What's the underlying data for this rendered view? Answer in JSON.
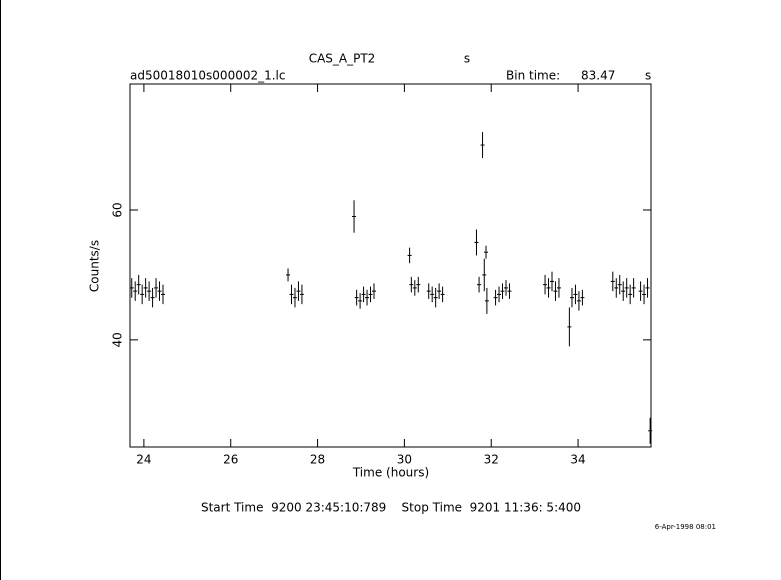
{
  "chart_data": {
    "type": "errorbar",
    "title": "CAS_A_PT2",
    "title_unit": "s",
    "file": "ad50018010s000002_1.lc",
    "bin_time_label": "Bin time:",
    "bin_time": 83.47,
    "bin_time_unit": "s",
    "x_label": "Time (hours)",
    "y_label": "Counts/s",
    "footer": "Start Time  9200 23:45:10:789    Stop Time  9201 11:36: 5:400",
    "date": "6-Apr-1998 08:01",
    "color": "#000000",
    "xlim": [
      23.68,
      35.68
    ],
    "ylim": [
      23.5,
      79.4
    ],
    "xticks": [
      24,
      26,
      28,
      30,
      32,
      34
    ],
    "yticks": [
      40,
      60
    ],
    "x": [
      23.72,
      23.8,
      23.88,
      23.96,
      24.04,
      24.12,
      24.2,
      24.28,
      24.36,
      24.44,
      27.32,
      27.4,
      27.48,
      27.56,
      27.64,
      28.84,
      28.9,
      28.98,
      29.06,
      29.14,
      29.22,
      29.3,
      30.12,
      30.16,
      30.24,
      30.32,
      30.56,
      30.64,
      30.72,
      30.8,
      30.88,
      31.66,
      31.72,
      31.8,
      31.84,
      31.88,
      31.9,
      32.1,
      32.18,
      32.26,
      32.34,
      32.42,
      33.24,
      33.32,
      33.4,
      33.48,
      33.56,
      33.8,
      33.86,
      33.94,
      34.02,
      34.1,
      34.8,
      34.88,
      34.96,
      35.04,
      35.12,
      35.2,
      35.28,
      35.44,
      35.52,
      35.6,
      35.66
    ],
    "values": [
      48,
      47.5,
      48.5,
      47,
      48,
      47.5,
      46.5,
      48,
      47.5,
      47,
      50,
      47,
      46.5,
      47.5,
      47,
      59,
      46.5,
      46,
      47,
      46.5,
      47,
      47.5,
      53,
      48.5,
      48,
      48.5,
      47.5,
      47,
      46.5,
      47.5,
      47,
      55,
      48.5,
      70,
      50,
      53.5,
      46,
      46.5,
      47,
      47.5,
      48,
      47.5,
      48.5,
      48,
      49,
      47.5,
      48,
      42,
      46.5,
      47,
      46,
      46.5,
      49,
      48,
      48.5,
      47.5,
      48,
      47,
      48,
      47.5,
      47,
      48,
      26
    ],
    "errors": [
      1.5,
      1.5,
      1.5,
      1.5,
      1.5,
      1.5,
      1.5,
      1.5,
      1.5,
      1.5,
      1,
      1.5,
      1.5,
      1.5,
      1.5,
      2.5,
      1.2,
      1.2,
      1.2,
      1.2,
      1.2,
      1.2,
      1.2,
      1.2,
      1.2,
      1.2,
      1.2,
      1.2,
      1.5,
      1.2,
      1.2,
      2,
      1.2,
      2,
      2.5,
      1,
      2,
      1.2,
      1.2,
      1.2,
      1.2,
      1.2,
      1.5,
      1.5,
      1.5,
      1.5,
      1.5,
      3,
      1.5,
      1.5,
      1.5,
      1.2,
      1.5,
      1.5,
      1.5,
      1.5,
      1.5,
      1.5,
      1.5,
      1.5,
      1.5,
      1.5,
      2
    ]
  }
}
